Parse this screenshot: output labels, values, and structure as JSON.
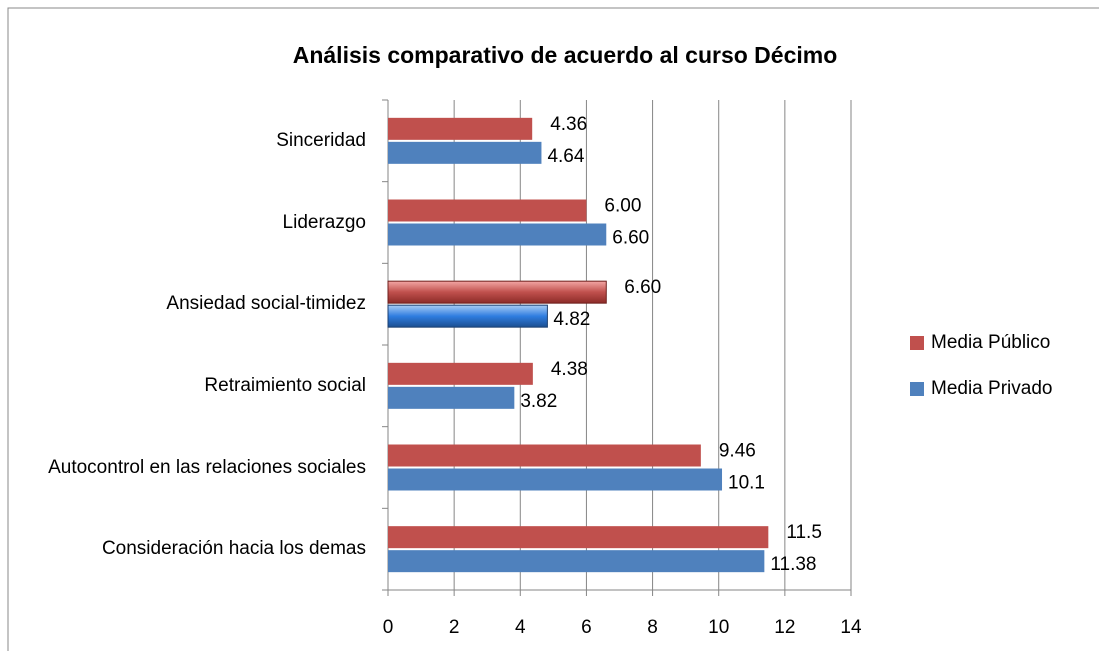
{
  "chart_data": {
    "type": "bar",
    "orientation": "horizontal",
    "title": "Análisis  comparativo de acuerdo al curso Décimo",
    "categories": [
      "Sinceridad",
      "Liderazgo",
      "Ansiedad social-timidez",
      "Retraimiento social",
      "Autocontrol en las relaciones sociales",
      "Consideración hacia los demas"
    ],
    "series": [
      {
        "name": "Media Público",
        "color": "#c0504d",
        "values": [
          4.36,
          6,
          6.6,
          4.38,
          9.46,
          11.5
        ],
        "value_labels": [
          "4.36",
          "6.00",
          "6.60",
          "4.38",
          "9.46",
          "11.5"
        ]
      },
      {
        "name": "Media Privado",
        "color": "#4f81bd",
        "values": [
          4.64,
          6.6,
          4.82,
          3.82,
          10.1,
          11.38
        ],
        "value_labels": [
          "4.64",
          "6.60",
          "4.82",
          "3.82",
          "10.1",
          "11.38"
        ]
      }
    ],
    "xlim": [
      0,
      14
    ],
    "xticks": [
      0,
      2,
      4,
      6,
      8,
      10,
      12,
      14
    ],
    "grid": true,
    "legend": "right"
  }
}
